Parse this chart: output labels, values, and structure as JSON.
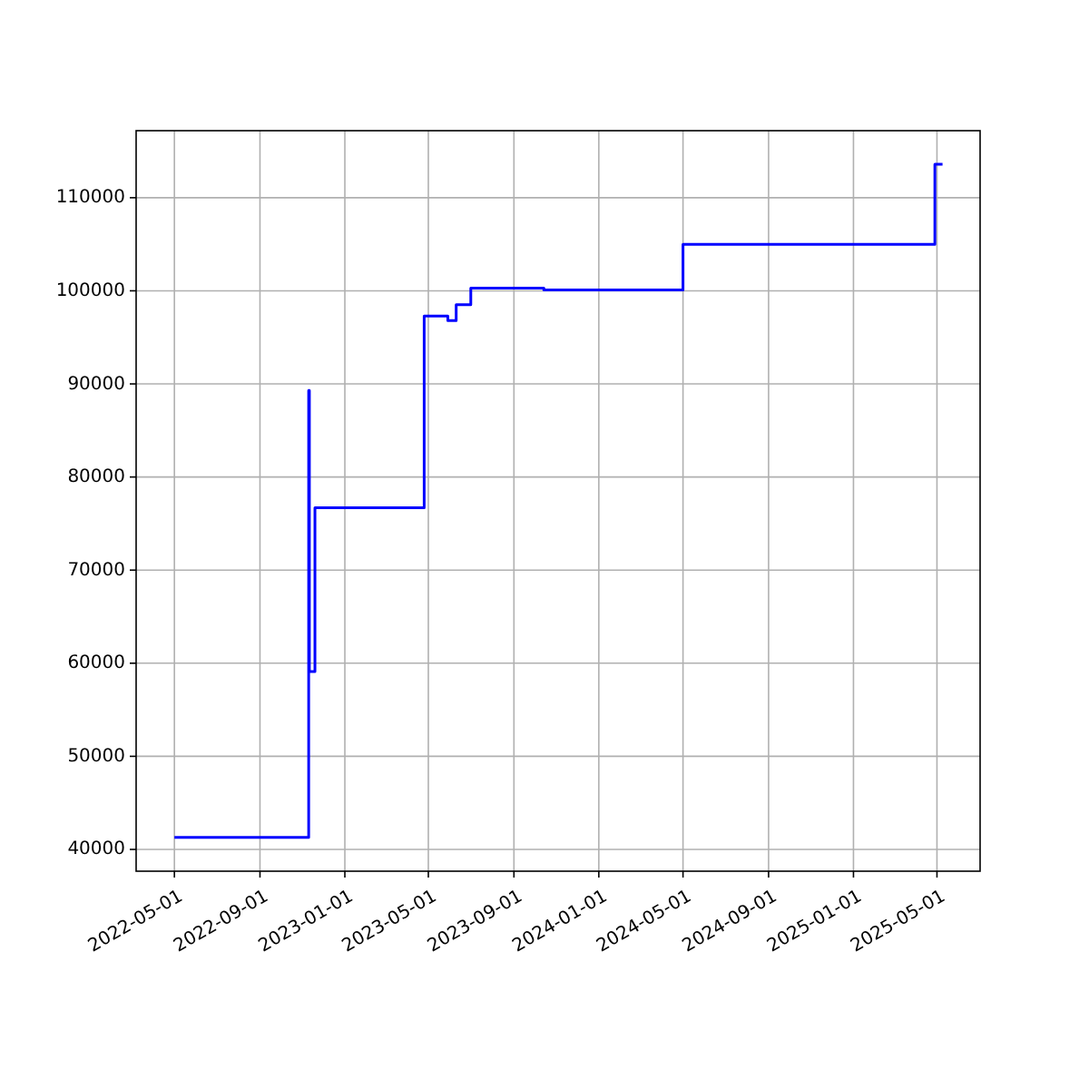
{
  "chart_data": {
    "type": "step",
    "x": [
      "2022-05-01",
      "2022-11-10",
      "2022-11-11",
      "2022-11-19",
      "2023-04-25",
      "2023-05-29",
      "2023-06-10",
      "2023-07-01",
      "2023-10-14",
      "2024-05-01",
      "2025-04-28",
      "2025-05-09"
    ],
    "series": [
      {
        "color": "#0000ff",
        "values": [
          41300,
          89300,
          59100,
          76700,
          97300,
          96800,
          98500,
          100300,
          100100,
          105000,
          113600,
          113600
        ]
      }
    ],
    "xlim": [
      "2022-03-07",
      "2025-07-02"
    ],
    "xticks": [
      "2022-05-01",
      "2022-09-01",
      "2023-01-01",
      "2023-05-01",
      "2023-09-01",
      "2024-01-01",
      "2024-05-01",
      "2024-09-01",
      "2025-01-01",
      "2025-05-01"
    ],
    "ylim": [
      37660,
      117200
    ],
    "yticks": [
      40000,
      50000,
      60000,
      70000,
      80000,
      90000,
      100000,
      110000
    ],
    "grid": true
  }
}
